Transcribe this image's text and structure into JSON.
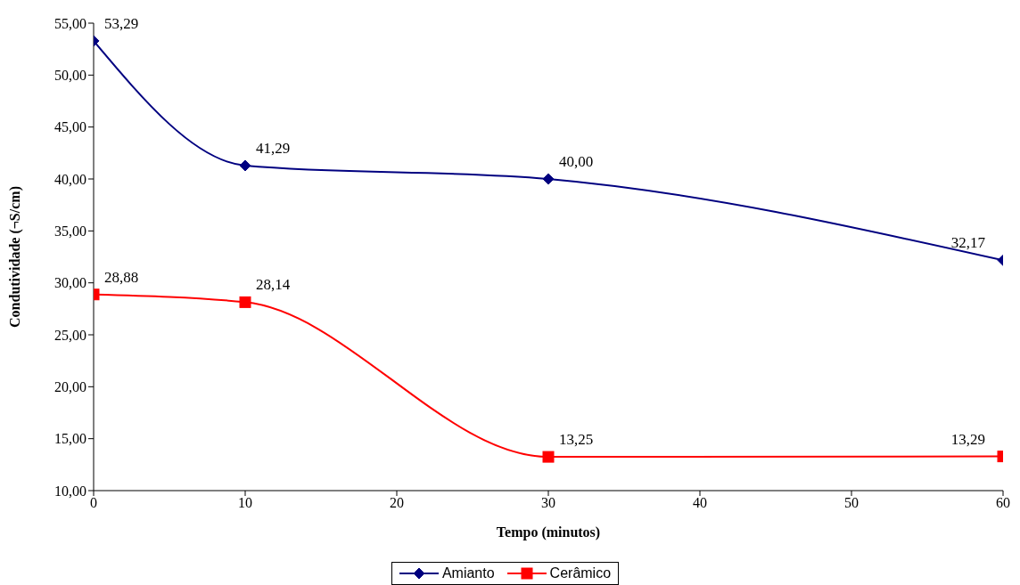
{
  "chart_data": {
    "type": "line",
    "xlabel": "Tempo (minutos)",
    "ylabel": "Condutividade (¬S/cm)",
    "x": [
      0,
      10,
      30,
      60
    ],
    "series": [
      {
        "name": "Amianto",
        "color": "#000080",
        "marker": "diamond",
        "values": [
          53.29,
          41.29,
          40.0,
          32.17
        ],
        "value_labels": [
          "53,29",
          "41,29",
          "40,00",
          "32,17"
        ]
      },
      {
        "name": "Cerâmico",
        "color": "#ff0000",
        "marker": "square",
        "values": [
          28.88,
          28.14,
          13.25,
          13.29
        ],
        "value_labels": [
          "28,88",
          "28,14",
          "13,25",
          "13,29"
        ]
      }
    ],
    "xlim": [
      0,
      60
    ],
    "xticks": [
      0,
      10,
      20,
      30,
      40,
      50,
      60
    ],
    "ylim": [
      10,
      55
    ],
    "yticks": [
      {
        "value": 10,
        "label": "10,00"
      },
      {
        "value": 15,
        "label": "15,00"
      },
      {
        "value": 20,
        "label": "20,00"
      },
      {
        "value": 25,
        "label": "25,00"
      },
      {
        "value": 30,
        "label": "30,00"
      },
      {
        "value": 35,
        "label": "35,00"
      },
      {
        "value": 40,
        "label": "40,00"
      },
      {
        "value": 45,
        "label": "45,00"
      },
      {
        "value": 50,
        "label": "50,00"
      },
      {
        "value": 55,
        "label": "55,00"
      }
    ],
    "legend": "bottom",
    "line_style": "solid"
  }
}
